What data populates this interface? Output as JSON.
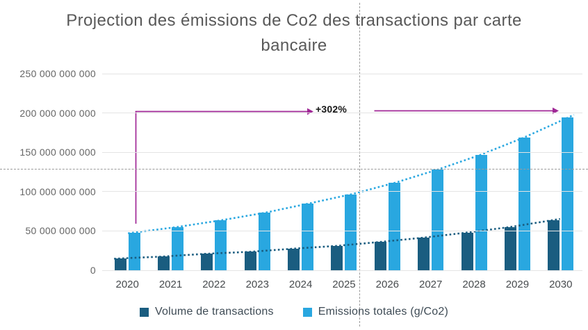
{
  "title": "Projection des émissions de Co2 des transactions par carte bancaire",
  "chart_data": {
    "type": "bar",
    "title": "Projection des émissions de Co2 des transactions par carte bancaire",
    "categories": [
      "2020",
      "2021",
      "2022",
      "2023",
      "2024",
      "2025",
      "2026",
      "2027",
      "2028",
      "2029",
      "2030"
    ],
    "series": [
      {
        "name": "Volume de transactions",
        "color": "#1a5d80",
        "trendline": true,
        "values": [
          15000000000,
          17500000000,
          21000000000,
          23500000000,
          27500000000,
          31000000000,
          36000000000,
          41500000000,
          48000000000,
          55000000000,
          64000000000
        ]
      },
      {
        "name": "Emissions totales (g/Co2)",
        "color": "#29a7e0",
        "trendline": true,
        "values": [
          48000000000,
          55000000000,
          63500000000,
          73000000000,
          84500000000,
          96500000000,
          111000000000,
          128000000000,
          147000000000,
          169000000000,
          194000000000
        ]
      }
    ],
    "y_ticks": [
      "0",
      "50 000 000 000",
      "100 000 000 000",
      "150 000 000 000",
      "200 000 000 000",
      "250 000 000 000"
    ],
    "ylim": [
      0,
      250000000000
    ],
    "grid": "horizontal",
    "legend_position": "bottom",
    "annotation": {
      "label": "+302%"
    }
  },
  "colors": {
    "annotation_line": "#a02896",
    "grid": "#e4e4e4",
    "crosshair": "#9a9a9a",
    "title_text": "#595959",
    "axis_text": "#656565",
    "legend_text": "#3e4b55"
  }
}
